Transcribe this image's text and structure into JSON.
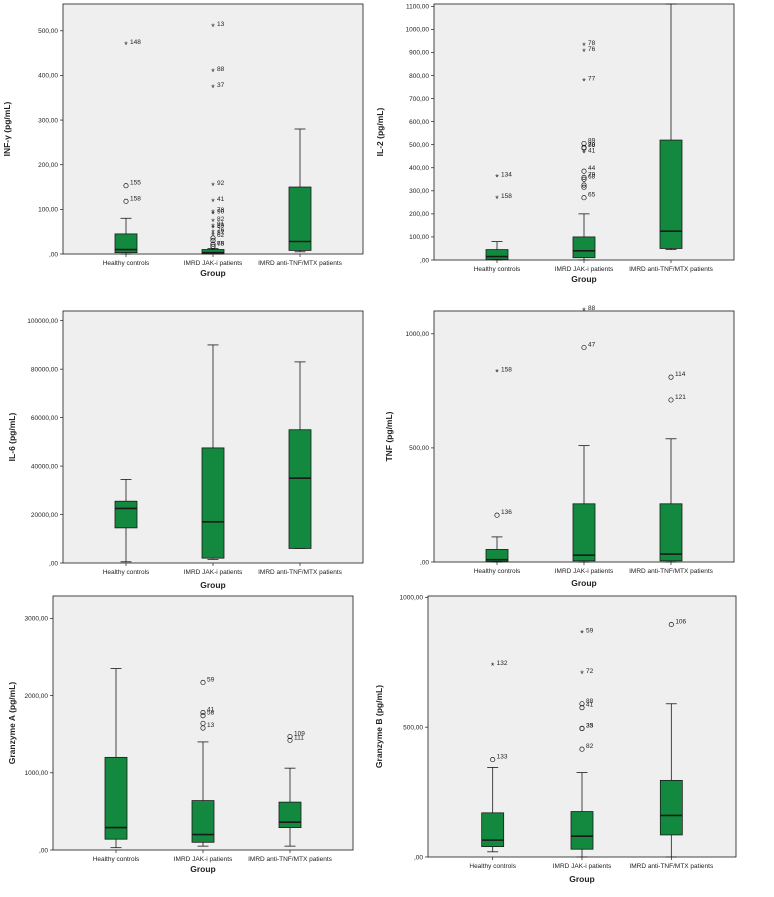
{
  "chart_data": [
    {
      "type": "boxplot",
      "ylabel": "INF-γ (pg/mL)",
      "xlabel": "Group",
      "categories": [
        "Healthy controls",
        "IMRD JAK-i patients",
        "IMRD anti-TNF/MTX patients"
      ],
      "ylim": [
        0,
        560
      ],
      "yticks": [
        0,
        100,
        200,
        300,
        400,
        500
      ],
      "ytick_labels": [
        ",00",
        "100,00",
        "200,00",
        "300,00",
        "400,00",
        "500,00"
      ],
      "boxes": [
        {
          "min": 0,
          "q1": 3,
          "median": 10,
          "q3": 45,
          "max": 80
        },
        {
          "min": 0,
          "q1": 0,
          "median": 3,
          "q3": 10,
          "max": 12
        },
        {
          "min": 5,
          "q1": 8,
          "median": 28,
          "q3": 150,
          "max": 280
        }
      ],
      "outliers": [
        {
          "group": 0,
          "value": 468,
          "symbol": "star",
          "label": "148"
        },
        {
          "group": 0,
          "value": 153,
          "symbol": "circle",
          "label": "155"
        },
        {
          "group": 0,
          "value": 118,
          "symbol": "circle",
          "label": "158"
        },
        {
          "group": 1,
          "value": 508,
          "symbol": "star",
          "label": "13"
        },
        {
          "group": 1,
          "value": 408,
          "symbol": "star",
          "label": "88"
        },
        {
          "group": 1,
          "value": 372,
          "symbol": "star",
          "label": "37"
        },
        {
          "group": 1,
          "value": 152,
          "symbol": "star",
          "label": "92"
        },
        {
          "group": 1,
          "value": 117,
          "symbol": "star",
          "label": "41"
        },
        {
          "group": 1,
          "value": 92,
          "symbol": "star",
          "label": "78"
        },
        {
          "group": 1,
          "value": 88,
          "symbol": "star",
          "label": "90"
        },
        {
          "group": 1,
          "value": 72,
          "symbol": "star",
          "label": "82"
        },
        {
          "group": 1,
          "value": 60,
          "symbol": "star",
          "label": "91"
        },
        {
          "group": 1,
          "value": 57,
          "symbol": "star",
          "label": "89"
        },
        {
          "group": 1,
          "value": 47,
          "symbol": "star",
          "label": "76"
        },
        {
          "group": 1,
          "value": 42,
          "symbol": "star",
          "label": "87"
        },
        {
          "group": 1,
          "value": 36,
          "symbol": "circle",
          "label": "62"
        },
        {
          "group": 1,
          "value": 30,
          "symbol": "circle",
          "label": ""
        },
        {
          "group": 1,
          "value": 22,
          "symbol": "circle",
          "label": ""
        },
        {
          "group": 1,
          "value": 17,
          "symbol": "circle",
          "label": "68"
        },
        {
          "group": 1,
          "value": 17,
          "symbol": "circle",
          "label": "75"
        }
      ]
    },
    {
      "type": "boxplot",
      "ylabel": "IL-2 (pg/mL)",
      "xlabel": "Group",
      "categories": [
        "Healthy controls",
        "IMRD JAK-i patients",
        "IMRD anti-TNF/MTX patients"
      ],
      "ylim": [
        0,
        1110
      ],
      "yticks": [
        0,
        100,
        200,
        300,
        400,
        500,
        600,
        700,
        800,
        900,
        1000,
        1100
      ],
      "ytick_labels": [
        ",00",
        "100,00",
        "200,00",
        "300,00",
        "400,00",
        "500,00",
        "600,00",
        "700,00",
        "800,00",
        "900,00",
        "1000,00",
        "1100,00"
      ],
      "boxes": [
        {
          "min": 0,
          "q1": 3,
          "median": 15,
          "q3": 45,
          "max": 80
        },
        {
          "min": 0,
          "q1": 10,
          "median": 40,
          "q3": 100,
          "max": 200
        },
        {
          "min": 45,
          "q1": 50,
          "median": 125,
          "q3": 520,
          "max": 1110
        }
      ],
      "outliers": [
        {
          "group": 0,
          "value": 358,
          "symbol": "star",
          "label": "134"
        },
        {
          "group": 0,
          "value": 265,
          "symbol": "star",
          "label": "158"
        },
        {
          "group": 1,
          "value": 928,
          "symbol": "star",
          "label": "78"
        },
        {
          "group": 1,
          "value": 902,
          "symbol": "star",
          "label": "76"
        },
        {
          "group": 1,
          "value": 775,
          "symbol": "star",
          "label": "77"
        },
        {
          "group": 1,
          "value": 505,
          "symbol": "circle",
          "label": "89"
        },
        {
          "group": 1,
          "value": 488,
          "symbol": "circle",
          "label": "70"
        },
        {
          "group": 1,
          "value": 485,
          "symbol": "circle",
          "label": "88"
        },
        {
          "group": 1,
          "value": 462,
          "symbol": "star",
          "label": "41"
        },
        {
          "group": 1,
          "value": 385,
          "symbol": "circle",
          "label": "44"
        },
        {
          "group": 1,
          "value": 358,
          "symbol": "circle",
          "label": "79"
        },
        {
          "group": 1,
          "value": 350,
          "symbol": "circle",
          "label": "68"
        },
        {
          "group": 1,
          "value": 325,
          "symbol": "circle",
          "label": ""
        },
        {
          "group": 1,
          "value": 315,
          "symbol": "circle",
          "label": ""
        },
        {
          "group": 1,
          "value": 270,
          "symbol": "circle",
          "label": "65"
        }
      ]
    },
    {
      "type": "boxplot",
      "ylabel": "IL-6 (pg/mL)",
      "xlabel": "Group",
      "categories": [
        "Healthy controls",
        "IMRD JAK-i patients",
        "IMRD anti-TNF/MTX patients"
      ],
      "ylim": [
        0,
        104000
      ],
      "yticks": [
        0,
        20000,
        40000,
        60000,
        80000,
        100000
      ],
      "ytick_labels": [
        ",00",
        "20000,00",
        "40000,00",
        "60000,00",
        "80000,00",
        "100000,00"
      ],
      "boxes": [
        {
          "min": 500,
          "q1": 14500,
          "median": 22500,
          "q3": 25500,
          "max": 34500
        },
        {
          "min": 1500,
          "q1": 2000,
          "median": 17000,
          "q3": 47500,
          "max": 90000
        },
        {
          "min": 6000,
          "q1": 6000,
          "median": 35000,
          "q3": 55000,
          "max": 83000
        }
      ],
      "outliers": []
    },
    {
      "type": "boxplot",
      "ylabel": "TNF (pg/mL)",
      "xlabel": "Group",
      "categories": [
        "Healthy controls",
        "IMRD JAK-i patients",
        "IMRD anti-TNF/MTX patients"
      ],
      "ylim": [
        0,
        1100
      ],
      "yticks": [
        0,
        500,
        1000
      ],
      "ytick_labels": [
        ",00",
        "500,00",
        "1000,00"
      ],
      "boxes": [
        {
          "min": 0,
          "q1": 3,
          "median": 10,
          "q3": 55,
          "max": 110
        },
        {
          "min": 0,
          "q1": 5,
          "median": 30,
          "q3": 255,
          "max": 510
        },
        {
          "min": 0,
          "q1": 5,
          "median": 35,
          "q3": 255,
          "max": 540
        }
      ],
      "outliers": [
        {
          "group": 0,
          "value": 830,
          "symbol": "star",
          "label": "158"
        },
        {
          "group": 0,
          "value": 205,
          "symbol": "circle",
          "label": "136"
        },
        {
          "group": 1,
          "value": 1100,
          "symbol": "star",
          "label": "88"
        },
        {
          "group": 1,
          "value": 940,
          "symbol": "circle",
          "label": "47"
        },
        {
          "group": 2,
          "value": 810,
          "symbol": "circle",
          "label": "114"
        },
        {
          "group": 2,
          "value": 710,
          "symbol": "circle",
          "label": "121"
        }
      ]
    },
    {
      "type": "boxplot",
      "ylabel": "Granzyme A (pg/mL)",
      "xlabel": "Group",
      "categories": [
        "Healthy controls",
        "IMRD JAK-i patients",
        "IMRD anti-TNF/MTX patients"
      ],
      "ylim": [
        0,
        3290
      ],
      "yticks": [
        0,
        1000,
        2000,
        3000
      ],
      "ytick_labels": [
        ",00",
        "1000,00",
        "2000,00",
        "3000,00"
      ],
      "boxes": [
        {
          "min": 30,
          "q1": 140,
          "median": 290,
          "q3": 1200,
          "max": 2350
        },
        {
          "min": 50,
          "q1": 100,
          "median": 200,
          "q3": 640,
          "max": 1400
        },
        {
          "min": 50,
          "q1": 290,
          "median": 360,
          "q3": 620,
          "max": 1060
        }
      ],
      "outliers": [
        {
          "group": 1,
          "value": 2170,
          "symbol": "circle",
          "label": "59"
        },
        {
          "group": 1,
          "value": 1780,
          "symbol": "circle",
          "label": "41"
        },
        {
          "group": 1,
          "value": 1740,
          "symbol": "circle",
          "label": "58"
        },
        {
          "group": 1,
          "value": 1640,
          "symbol": "circle",
          "label": ""
        },
        {
          "group": 1,
          "value": 1580,
          "symbol": "circle",
          "label": "13"
        },
        {
          "group": 2,
          "value": 1470,
          "symbol": "circle",
          "label": "109"
        },
        {
          "group": 2,
          "value": 1420,
          "symbol": "circle",
          "label": "111"
        }
      ]
    },
    {
      "type": "boxplot",
      "ylabel": "Granzyme B (pg/mL)",
      "xlabel": "Group",
      "categories": [
        "Healthy controls",
        "IMRD JAK-i patients",
        "IMRD anti-TNF/MTX patients"
      ],
      "ylim": [
        0,
        1005
      ],
      "yticks": [
        0,
        500,
        1000
      ],
      "ytick_labels": [
        ",00",
        "500,00",
        "1000,00"
      ],
      "boxes": [
        {
          "min": 20,
          "q1": 40,
          "median": 65,
          "q3": 170,
          "max": 345
        },
        {
          "min": 0,
          "q1": 30,
          "median": 80,
          "q3": 175,
          "max": 325
        },
        {
          "min": 0,
          "q1": 85,
          "median": 160,
          "q3": 295,
          "max": 590
        }
      ],
      "outliers": [
        {
          "group": 0,
          "value": 735,
          "symbol": "star",
          "label": "132"
        },
        {
          "group": 0,
          "value": 375,
          "symbol": "circle",
          "label": "133"
        },
        {
          "group": 1,
          "value": 860,
          "symbol": "star",
          "label": "59"
        },
        {
          "group": 1,
          "value": 705,
          "symbol": "star",
          "label": "72"
        },
        {
          "group": 1,
          "value": 590,
          "symbol": "circle",
          "label": "88"
        },
        {
          "group": 1,
          "value": 575,
          "symbol": "circle",
          "label": "41"
        },
        {
          "group": 1,
          "value": 495,
          "symbol": "circle",
          "label": "33"
        },
        {
          "group": 1,
          "value": 495,
          "symbol": "circle",
          "label": "35"
        },
        {
          "group": 1,
          "value": 415,
          "symbol": "circle",
          "label": "82"
        },
        {
          "group": 2,
          "value": 895,
          "symbol": "circle",
          "label": "106"
        }
      ]
    }
  ],
  "colors": {
    "box_fill": "#13893f",
    "plot_bg": "#efefef",
    "line": "#1a1a1a"
  }
}
